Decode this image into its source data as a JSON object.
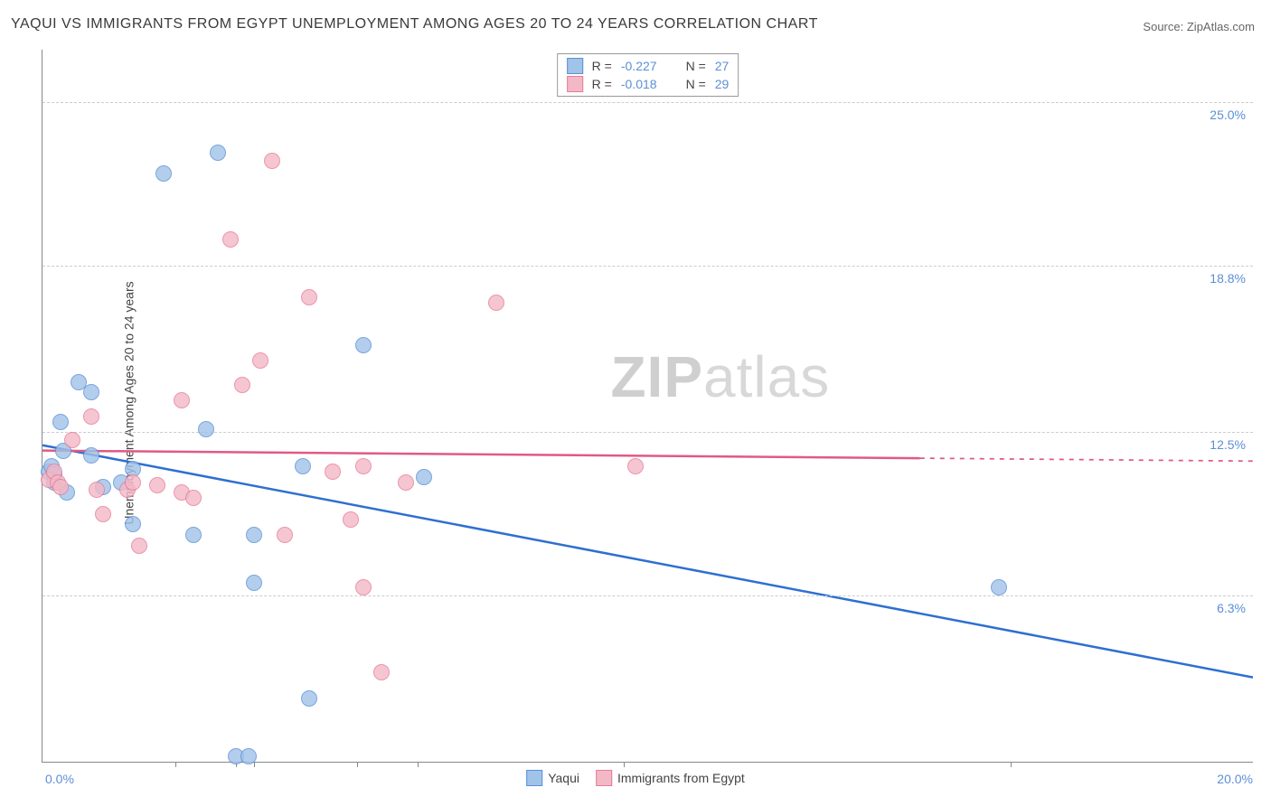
{
  "title": "YAQUI VS IMMIGRANTS FROM EGYPT UNEMPLOYMENT AMONG AGES 20 TO 24 YEARS CORRELATION CHART",
  "source_label": "Source:",
  "source_value": "ZipAtlas.com",
  "y_axis_label": "Unemployment Among Ages 20 to 24 years",
  "watermark_a": "ZIP",
  "watermark_b": "atlas",
  "chart": {
    "type": "scatter",
    "xlim": [
      0,
      20
    ],
    "ylim": [
      0,
      27
    ],
    "x_ticks": [
      0,
      20
    ],
    "x_tick_labels": [
      "0.0%",
      "20.0%"
    ],
    "y_ticks": [
      6.3,
      12.5,
      18.8,
      25.0
    ],
    "y_tick_labels": [
      "6.3%",
      "12.5%",
      "18.8%",
      "25.0%"
    ],
    "x_minor_ticks": [
      2.2,
      3.2,
      3.5,
      5.2,
      6.2,
      9.6,
      16
    ],
    "grid_color": "#cccccc",
    "background_color": "#ffffff",
    "axis_color": "#888888",
    "tick_label_color": "#5b8fd6",
    "title_fontsize": 16,
    "axis_label_fontsize": 14
  },
  "series": [
    {
      "name": "Yaqui",
      "fill_color": "#a0c3e8",
      "stroke_color": "#5b8fd6",
      "fill_opacity": 0.45,
      "marker_size": 18,
      "R": "-0.227",
      "N": "27",
      "regression": {
        "x1": 0,
        "y1": 12.0,
        "x2": 20,
        "y2": 3.2,
        "solid_until_x": 20,
        "color": "#2e6fd1",
        "width": 2.5
      },
      "points": [
        [
          0.1,
          11.0
        ],
        [
          0.15,
          11.2
        ],
        [
          0.2,
          10.9
        ],
        [
          0.2,
          10.6
        ],
        [
          0.3,
          12.9
        ],
        [
          0.35,
          11.8
        ],
        [
          0.4,
          10.2
        ],
        [
          0.6,
          14.4
        ],
        [
          0.8,
          14.0
        ],
        [
          0.8,
          11.6
        ],
        [
          1.0,
          10.4
        ],
        [
          1.3,
          10.6
        ],
        [
          1.5,
          11.1
        ],
        [
          1.5,
          9.0
        ],
        [
          2.0,
          22.3
        ],
        [
          2.5,
          8.6
        ],
        [
          2.7,
          12.6
        ],
        [
          2.9,
          23.1
        ],
        [
          3.2,
          0.2
        ],
        [
          3.4,
          0.2
        ],
        [
          3.5,
          8.6
        ],
        [
          3.5,
          6.8
        ],
        [
          4.3,
          11.2
        ],
        [
          4.4,
          2.4
        ],
        [
          5.3,
          15.8
        ],
        [
          6.3,
          10.8
        ],
        [
          15.8,
          6.6
        ]
      ]
    },
    {
      "name": "Immigrants from Egypt",
      "fill_color": "#f3b8c6",
      "stroke_color": "#e77b98",
      "fill_opacity": 0.45,
      "marker_size": 18,
      "R": "-0.018",
      "N": "29",
      "regression": {
        "x1": 0,
        "y1": 11.8,
        "x2": 20,
        "y2": 11.4,
        "solid_until_x": 14.5,
        "color": "#e05a84",
        "width": 2.5
      },
      "points": [
        [
          0.1,
          10.7
        ],
        [
          0.2,
          11.0
        ],
        [
          0.25,
          10.6
        ],
        [
          0.3,
          10.4
        ],
        [
          0.5,
          12.2
        ],
        [
          0.8,
          13.1
        ],
        [
          0.9,
          10.3
        ],
        [
          1.0,
          9.4
        ],
        [
          1.4,
          10.3
        ],
        [
          1.5,
          10.6
        ],
        [
          1.6,
          8.2
        ],
        [
          1.9,
          10.5
        ],
        [
          2.3,
          10.2
        ],
        [
          2.3,
          13.7
        ],
        [
          2.5,
          10.0
        ],
        [
          3.1,
          19.8
        ],
        [
          3.3,
          14.3
        ],
        [
          3.6,
          15.2
        ],
        [
          3.8,
          22.8
        ],
        [
          4.0,
          8.6
        ],
        [
          4.4,
          17.6
        ],
        [
          4.8,
          11.0
        ],
        [
          5.1,
          9.2
        ],
        [
          5.3,
          6.6
        ],
        [
          5.3,
          11.2
        ],
        [
          5.6,
          3.4
        ],
        [
          6.0,
          10.6
        ],
        [
          7.5,
          17.4
        ],
        [
          9.8,
          11.2
        ]
      ]
    }
  ],
  "legend_labels": {
    "R_prefix": "R =",
    "N_prefix": "N ="
  }
}
